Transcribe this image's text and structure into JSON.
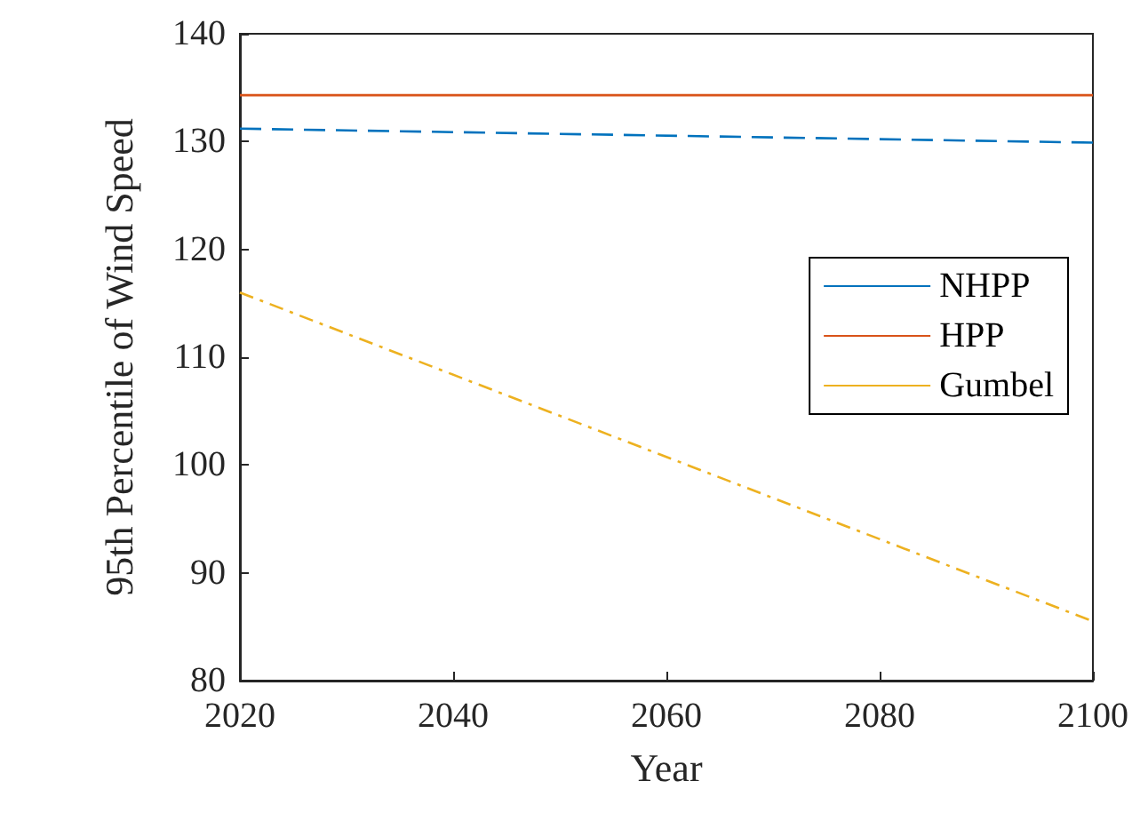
{
  "chart_data": {
    "type": "line",
    "xlabel": "Year",
    "ylabel": "95th Percentile of Wind Speed",
    "x": [
      2020,
      2100
    ],
    "series": [
      {
        "name": "NHPP",
        "color": "#0072bd",
        "values": [
          131.2,
          129.9
        ],
        "line_style": "dashed"
      },
      {
        "name": "HPP",
        "color": "#d95319",
        "values": [
          134.3,
          134.3
        ],
        "line_style": "solid"
      },
      {
        "name": "Gumbel",
        "color": "#edb120",
        "values": [
          116.0,
          85.5
        ],
        "line_style": "dashdot"
      }
    ],
    "xlim": [
      2020,
      2100
    ],
    "xticks": [
      2020,
      2040,
      2060,
      2080,
      2100
    ],
    "ylim": [
      80,
      140
    ],
    "yticks": [
      80,
      90,
      100,
      110,
      120,
      130,
      140
    ],
    "grid": false,
    "legend": "right",
    "marker": "none"
  }
}
